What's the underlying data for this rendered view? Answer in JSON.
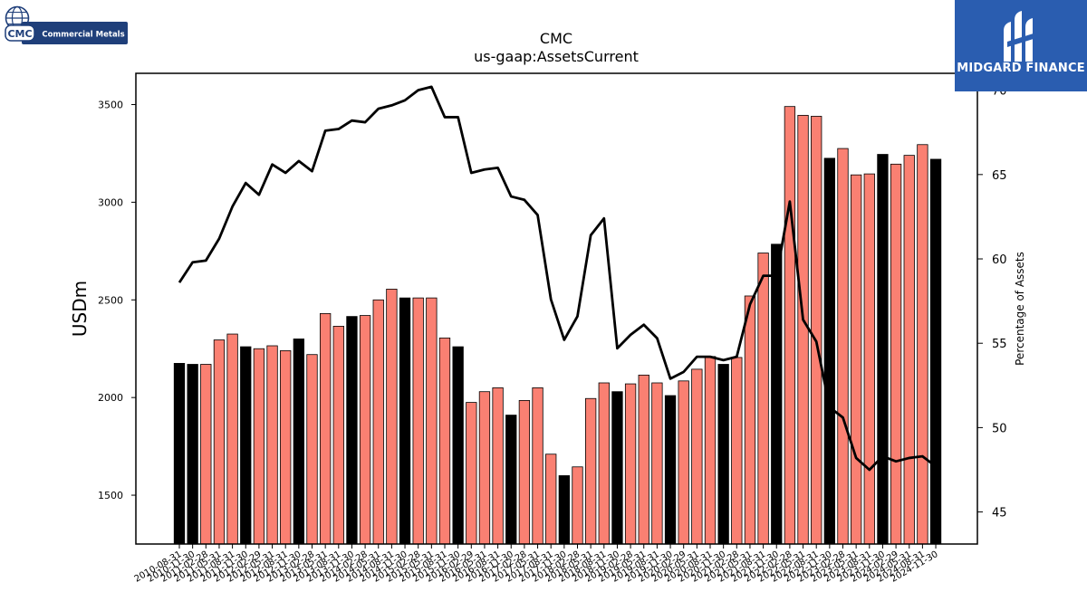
{
  "branding": {
    "left_logo_text": "Commercial Metals",
    "left_logo_badge": "CMC",
    "right_logo_text": "MIDGARD FINANCE",
    "right_logo_bg": "#2a5db0"
  },
  "chart_data": {
    "type": "bar",
    "title": "CMC",
    "subtitle": "us-gaap:AssetsCurrent",
    "ylabel": "USDm",
    "y2label": "Percentage of Assets",
    "ylim": [
      1250,
      3660
    ],
    "y2lim": [
      43.1,
      71.0
    ],
    "yticks": [
      1500,
      2000,
      2500,
      3000,
      3500
    ],
    "y2ticks": [
      45,
      50,
      55,
      60,
      65,
      70
    ],
    "colors": {
      "bar_default": "#fa8072",
      "bar_fiscal_year_end": "#000000",
      "line": "#000000"
    },
    "categories": [
      "2010-08-31",
      "2010-11-30",
      "2011-02-28",
      "2011-05-31",
      "2011-08-31",
      "2011-11-30",
      "2012-02-29",
      "2012-05-31",
      "2012-08-31",
      "2012-11-30",
      "2013-02-28",
      "2013-05-31",
      "2013-08-31",
      "2013-11-30",
      "2014-02-28",
      "2014-05-31",
      "2014-08-31",
      "2014-11-30",
      "2015-02-28",
      "2015-05-31",
      "2015-08-31",
      "2015-11-30",
      "2016-02-29",
      "2016-05-31",
      "2016-08-31",
      "2016-11-30",
      "2017-02-28",
      "2017-05-31",
      "2017-08-31",
      "2017-11-30",
      "2018-02-28",
      "2018-05-31",
      "2018-08-31",
      "2018-11-30",
      "2019-02-28",
      "2019-05-31",
      "2019-08-31",
      "2019-11-30",
      "2020-02-29",
      "2020-05-31",
      "2020-08-31",
      "2020-11-30",
      "2021-02-28",
      "2021-05-31",
      "2021-08-31",
      "2021-11-30",
      "2022-02-28",
      "2022-05-31",
      "2022-08-31",
      "2022-11-30",
      "2023-02-28",
      "2023-05-31",
      "2023-08-31",
      "2023-11-30",
      "2024-02-29",
      "2024-05-31",
      "2024-08-31",
      "2024-11-30"
    ],
    "x_tick_labels": [
      "2010-08-31",
      "2010-11-30",
      "2011-02-28",
      "2011-05-31",
      "2011-08-31",
      "2011-11-30",
      "2012-02-29",
      "2012-05-31",
      "2012-08-31",
      "2012-11-30",
      "2013-02-28",
      "2013-05-31",
      "2013-08-31",
      "2013-11-30",
      "2014-02-28",
      "2014-05-31",
      "2014-08-31",
      "2014-11-30",
      "2015-02-28",
      "2015-05-31",
      "2015-08-31",
      "2015-11-30",
      "2016-02-29",
      "2016-05-31",
      "2016-08-31",
      "2016-11-30",
      "2017-02-28",
      "2017-05-31",
      "2017-08-31",
      "2017-11-30",
      "2018-02-28",
      "2018-05-31",
      "2018-08-31",
      "2018-11-30",
      "2019-02-28",
      "2019-05-31",
      "2019-08-31",
      "2019-11-30",
      "2020-02-29",
      "2020-05-31",
      "2020-08-31",
      "2020-11-30",
      "2021-02-28",
      "2021-05-31",
      "2021-08-31",
      "2021-11-30",
      "2022-02-28",
      "2022-05-31",
      "2022-08-31",
      "2022-11-30",
      "2023-02-28",
      "2023-05-31",
      "2023-08-31",
      "2023-11-30",
      "2024-02-29",
      "2024-05-31",
      "2024-08-31",
      "2024-11-30"
    ],
    "series": [
      {
        "name": "AssetsCurrent",
        "type": "bar",
        "axis": "left",
        "values": [
          2175,
          2170,
          2170,
          2295,
          2325,
          2260,
          2250,
          2265,
          2240,
          2300,
          2220,
          2430,
          2365,
          2415,
          2420,
          2500,
          2555,
          2510,
          2510,
          2510,
          2305,
          2260,
          1975,
          2030,
          2050,
          1910,
          1985,
          2050,
          1710,
          1600,
          1645,
          1995,
          2075,
          2030,
          2070,
          2115,
          2075,
          2010,
          2085,
          2145,
          2210,
          2170,
          2205,
          2520,
          2740,
          2785,
          3490,
          3445,
          3440,
          3225,
          3275,
          3140,
          3145,
          3245,
          3195,
          3240,
          3295,
          3220
        ],
        "fiscal_year_end": [
          true,
          true,
          false,
          false,
          false,
          true,
          false,
          false,
          false,
          true,
          false,
          false,
          false,
          true,
          false,
          false,
          false,
          true,
          false,
          false,
          false,
          true,
          false,
          false,
          false,
          true,
          false,
          false,
          false,
          true,
          false,
          false,
          false,
          true,
          false,
          false,
          false,
          true,
          false,
          false,
          false,
          true,
          false,
          false,
          false,
          true,
          false,
          false,
          false,
          true,
          false,
          false,
          false,
          true,
          false,
          false,
          false,
          true
        ]
      },
      {
        "name": "Percentage of Assets",
        "type": "line",
        "axis": "right",
        "values": [
          58.6,
          59.8,
          59.9,
          61.2,
          63.1,
          64.5,
          63.8,
          65.6,
          65.1,
          65.8,
          65.2,
          67.6,
          67.7,
          68.2,
          68.1,
          68.9,
          69.1,
          69.4,
          70.0,
          70.2,
          68.4,
          68.4,
          65.1,
          65.3,
          65.4,
          63.7,
          63.5,
          62.6,
          57.6,
          55.2,
          56.6,
          61.4,
          62.4,
          54.7,
          55.5,
          56.1,
          55.3,
          52.9,
          53.3,
          54.2,
          54.2,
          54.0,
          54.2,
          57.3,
          59.0,
          59.0,
          63.4,
          56.4,
          55.1,
          51.2,
          50.6,
          48.2,
          47.5,
          48.3,
          48.0,
          48.2,
          48.3,
          47.7
        ]
      }
    ]
  }
}
